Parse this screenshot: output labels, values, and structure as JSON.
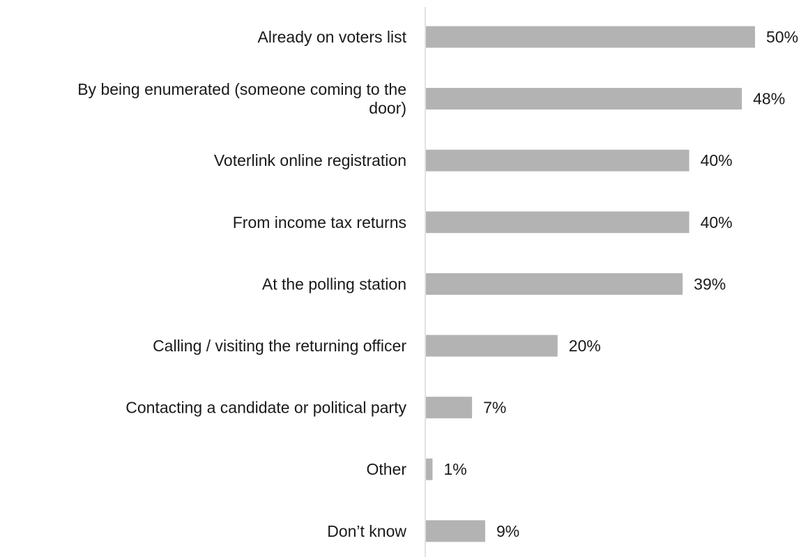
{
  "chart_data": {
    "type": "bar",
    "orientation": "horizontal",
    "categories": [
      [
        "Already on voters list"
      ],
      [
        "By being enumerated (someone coming to the",
        "door)"
      ],
      [
        "Voterlink online registration"
      ],
      [
        "From income tax returns"
      ],
      [
        "At the polling station"
      ],
      [
        "Calling / visiting the returning officer"
      ],
      [
        "Contacting a candidate or political party"
      ],
      [
        "Other"
      ],
      [
        "Don’t know"
      ]
    ],
    "values": [
      50,
      48,
      40,
      40,
      39,
      20,
      7,
      1,
      9
    ],
    "value_labels": [
      "50%",
      "48%",
      "40%",
      "40%",
      "39%",
      "20%",
      "7%",
      "1%",
      "9%"
    ],
    "unit": "%",
    "bar_color": "#b3b3b3",
    "axis_color": "#d9d9d9",
    "grid": false,
    "legend": false
  }
}
